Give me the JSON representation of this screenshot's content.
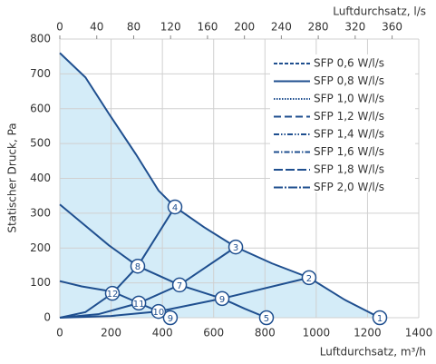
{
  "chart_data": {
    "type": "line",
    "xlabel": "Luftdurchsatz, m³/h",
    "x2label": "Luftdurchsatz, l/s",
    "ylabel": "Statischer Druck, Pa",
    "xlim": [
      0,
      1400
    ],
    "xticks": [
      0,
      200,
      400,
      600,
      800,
      1000,
      1200,
      1400
    ],
    "x2lim": [
      0,
      388.89
    ],
    "x2ticks": [
      0,
      40,
      80,
      120,
      160,
      200,
      240,
      280,
      320,
      360
    ],
    "ylim": [
      0,
      800
    ],
    "yticks": [
      0,
      100,
      200,
      300,
      400,
      500,
      600,
      700,
      800
    ],
    "grid": true,
    "line_color": "#1f4f8f",
    "fill_color": "#d4ecf8",
    "series": [
      {
        "x": [
          0,
          100,
          191,
          297,
          385,
          449,
          562,
          686,
          827,
          972,
          1110,
          1248
        ],
        "values": [
          760,
          690,
          586,
          469,
          365,
          318,
          260,
          203,
          156,
          115,
          52,
          0
        ],
        "fill": true
      },
      {
        "x": [
          0,
          85,
          191,
          304,
          467,
          633,
          721,
          806
        ],
        "values": [
          325,
          273,
          208,
          148,
          94,
          55,
          26,
          0
        ]
      },
      {
        "x": [
          0,
          85,
          205,
          308,
          385,
          431
        ],
        "values": [
          105,
          90,
          75,
          42,
          18,
          0
        ]
      },
      {
        "x": [
          0,
          100,
          205,
          304,
          449
        ],
        "values": [
          0,
          16,
          70,
          148,
          318
        ]
      },
      {
        "x": [
          0,
          150,
          308,
          467,
          686
        ],
        "values": [
          0,
          10,
          42,
          94,
          203
        ]
      },
      {
        "x": [
          0,
          200,
          385,
          633,
          972
        ],
        "values": [
          0,
          5,
          18,
          55,
          115
        ]
      }
    ],
    "markers": [
      {
        "label": "1",
        "x": 1248,
        "y": 0
      },
      {
        "label": "2",
        "x": 972,
        "y": 115
      },
      {
        "label": "3",
        "x": 686,
        "y": 203
      },
      {
        "label": "4",
        "x": 449,
        "y": 318
      },
      {
        "label": "5",
        "x": 806,
        "y": 0
      },
      {
        "label": "7",
        "x": 467,
        "y": 94
      },
      {
        "label": "8",
        "x": 304,
        "y": 148
      },
      {
        "label": "9",
        "x": 633,
        "y": 55
      },
      {
        "label": "9",
        "x": 431,
        "y": 0
      },
      {
        "label": "10",
        "x": 385,
        "y": 18
      },
      {
        "label": "11",
        "x": 308,
        "y": 42
      },
      {
        "label": "12",
        "x": 205,
        "y": 70
      }
    ],
    "legend": {
      "entries": [
        "SFP 0,6 W/l/s",
        "SFP 0,8 W/l/s",
        "SFP 1,0 W/l/s",
        "SFP 1,2 W/l/s",
        "SFP 1,4 W/l/s",
        "SFP 1,6 W/l/s",
        "SFP 1,8 W/l/s",
        "SFP 2,0 W/l/s"
      ],
      "dashes": [
        "4 2",
        "none",
        "1.5 1.5",
        "8 4",
        "6 2 1.5 2 1.5 2",
        "6 2 1.5 2",
        "10 3",
        "10 2 2 2"
      ]
    }
  }
}
